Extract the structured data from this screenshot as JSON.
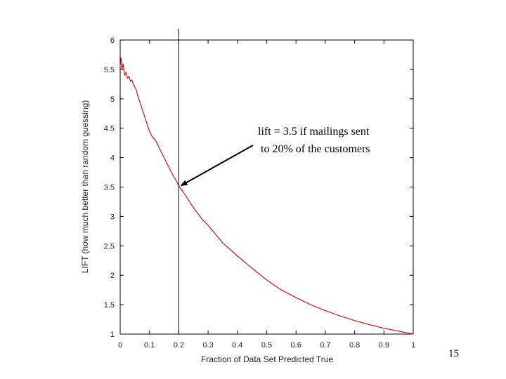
{
  "slide_number": "15",
  "colors": {
    "curve": "#cc0000",
    "axis": "#000000",
    "arrow": "#000000"
  },
  "chart_data": {
    "type": "line",
    "title": "",
    "xlabel": "Fraction of Data Set Predicted True",
    "ylabel": "LIFT (how much better than random guessing)",
    "xlim": [
      0,
      1
    ],
    "ylim": [
      1,
      6
    ],
    "xticks": [
      0,
      0.1,
      0.2,
      0.3,
      0.4,
      0.5,
      0.6,
      0.7,
      0.8,
      0.9,
      1
    ],
    "xtick_labels": [
      "0",
      "0.1",
      "0.2",
      "0.3",
      "0.4",
      "0.5",
      "0.6",
      "0.7",
      "0.8",
      "0.9",
      "1"
    ],
    "yticks": [
      1,
      1.5,
      2,
      2.5,
      3,
      3.5,
      4,
      4.5,
      5,
      5.5,
      6
    ],
    "ytick_labels": [
      "1",
      "1.5",
      "2",
      "2.5",
      "3",
      "3.5",
      "4",
      "4.5",
      "5",
      "5.5",
      "6"
    ],
    "grid": false,
    "series": [
      {
        "name": "lift",
        "x": [
          0,
          0.003,
          0.006,
          0.01,
          0.015,
          0.02,
          0.025,
          0.03,
          0.035,
          0.04,
          0.045,
          0.05,
          0.055,
          0.06,
          0.07,
          0.08,
          0.09,
          0.1,
          0.11,
          0.12,
          0.13,
          0.14,
          0.15,
          0.16,
          0.17,
          0.18,
          0.19,
          0.2,
          0.22,
          0.25,
          0.28,
          0.3,
          0.35,
          0.4,
          0.45,
          0.5,
          0.55,
          0.6,
          0.65,
          0.7,
          0.75,
          0.8,
          0.85,
          0.9,
          0.95,
          1
        ],
        "y": [
          5.55,
          5.7,
          5.5,
          5.6,
          5.4,
          5.45,
          5.35,
          5.38,
          5.3,
          5.32,
          5.25,
          5.2,
          5.15,
          5.05,
          4.9,
          4.75,
          4.6,
          4.45,
          4.35,
          4.3,
          4.2,
          4.1,
          4.0,
          3.9,
          3.8,
          3.7,
          3.62,
          3.52,
          3.38,
          3.15,
          2.95,
          2.85,
          2.55,
          2.33,
          2.12,
          1.92,
          1.75,
          1.62,
          1.5,
          1.4,
          1.31,
          1.23,
          1.16,
          1.1,
          1.05,
          1.0
        ]
      }
    ],
    "vline_x": 0.2,
    "annotation": {
      "lines": [
        "lift = 3.5 if mailings sent",
        "to 20% of the customers"
      ],
      "point": [
        0.2,
        3.5
      ]
    }
  }
}
